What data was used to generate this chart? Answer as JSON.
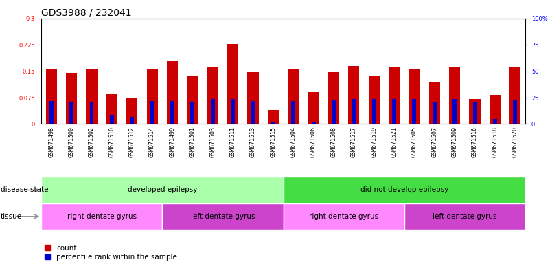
{
  "title": "GDS3988 / 232041",
  "samples": [
    "GSM671498",
    "GSM671500",
    "GSM671502",
    "GSM671510",
    "GSM671512",
    "GSM671514",
    "GSM671499",
    "GSM671501",
    "GSM671503",
    "GSM671511",
    "GSM671513",
    "GSM671515",
    "GSM671504",
    "GSM671506",
    "GSM671508",
    "GSM671517",
    "GSM671519",
    "GSM671521",
    "GSM671505",
    "GSM671507",
    "GSM671509",
    "GSM671516",
    "GSM671518",
    "GSM671520"
  ],
  "count_values": [
    0.155,
    0.145,
    0.155,
    0.085,
    0.075,
    0.155,
    0.18,
    0.138,
    0.162,
    0.228,
    0.15,
    0.04,
    0.155,
    0.09,
    0.148,
    0.165,
    0.138,
    0.163,
    0.155,
    0.12,
    0.163,
    0.072,
    0.083,
    0.163
  ],
  "percentile_values": [
    0.065,
    0.062,
    0.062,
    0.025,
    0.02,
    0.065,
    0.065,
    0.062,
    0.072,
    0.072,
    0.065,
    0.007,
    0.065,
    0.007,
    0.068,
    0.072,
    0.072,
    0.072,
    0.072,
    0.062,
    0.072,
    0.062,
    0.015,
    0.068
  ],
  "bar_color": "#cc0000",
  "pct_color": "#0000cc",
  "ylim_left": [
    0,
    0.3
  ],
  "ylim_right": [
    0,
    100
  ],
  "yticks_left": [
    0,
    0.075,
    0.15,
    0.225,
    0.3
  ],
  "yticks_right": [
    0,
    25,
    50,
    75,
    100
  ],
  "ytick_labels_left": [
    "0",
    "0.075",
    "0.15",
    "0.225",
    "0.3"
  ],
  "ytick_labels_right": [
    "0",
    "25",
    "50",
    "75",
    "100%"
  ],
  "grid_lines": [
    0.075,
    0.15,
    0.225
  ],
  "disease_state_groups": [
    {
      "label": "developed epilepsy",
      "start": 0,
      "end": 12,
      "color": "#aaffaa"
    },
    {
      "label": "did not develop epilepsy",
      "start": 12,
      "end": 24,
      "color": "#44dd44"
    }
  ],
  "tissue_groups": [
    {
      "label": "right dentate gyrus",
      "start": 0,
      "end": 6,
      "color": "#ff88ff"
    },
    {
      "label": "left dentate gyrus",
      "start": 6,
      "end": 12,
      "color": "#cc44cc"
    },
    {
      "label": "right dentate gyrus",
      "start": 12,
      "end": 18,
      "color": "#ff88ff"
    },
    {
      "label": "left dentate gyrus",
      "start": 18,
      "end": 24,
      "color": "#cc44cc"
    }
  ],
  "legend_count_label": "count",
  "legend_pct_label": "percentile rank within the sample",
  "disease_label": "disease state",
  "tissue_label": "tissue",
  "bar_width": 0.55,
  "pct_bar_width": 0.2,
  "title_fontsize": 10,
  "tick_fontsize": 6,
  "label_fontsize": 7.5,
  "group_fontsize": 7.5,
  "xtick_gray": "#d8d8d8"
}
